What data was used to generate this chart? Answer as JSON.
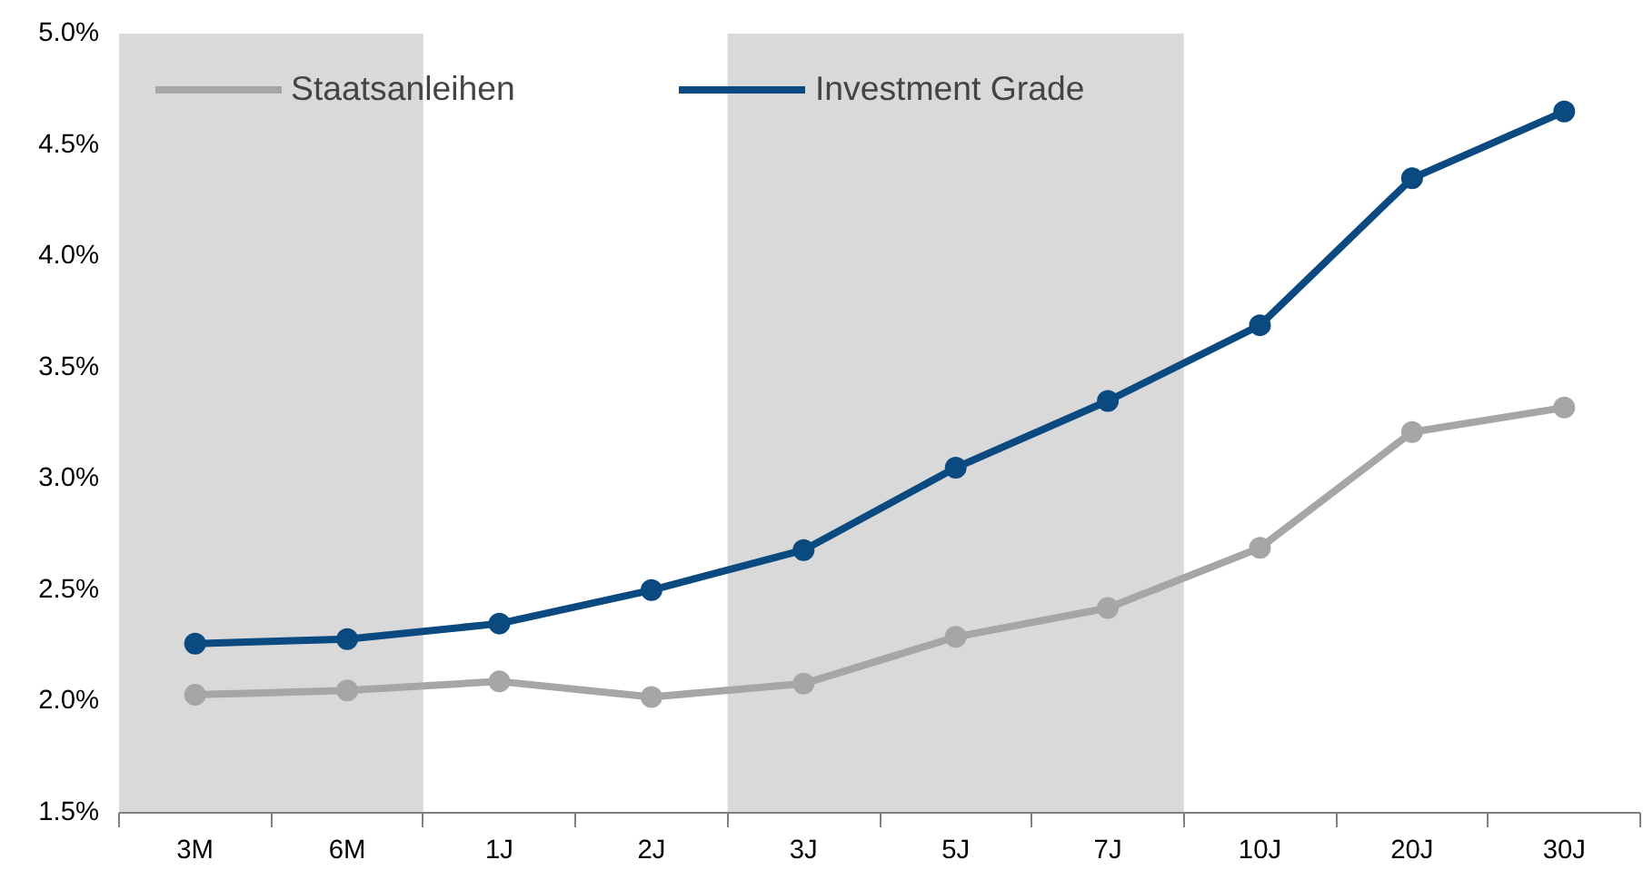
{
  "chart_data": {
    "type": "line",
    "categories": [
      "3M",
      "6M",
      "1J",
      "2J",
      "3J",
      "5J",
      "7J",
      "10J",
      "20J",
      "30J"
    ],
    "series": [
      {
        "name": "Staatsanleihen",
        "color": "#a6a6a6",
        "values": [
          2.03,
          2.05,
          2.09,
          2.02,
          2.08,
          2.29,
          2.42,
          2.69,
          3.21,
          3.32
        ]
      },
      {
        "name": "Investment Grade",
        "color": "#0b4a80",
        "values": [
          2.26,
          2.28,
          2.35,
          2.5,
          2.68,
          3.05,
          3.35,
          3.69,
          4.35,
          4.65
        ]
      }
    ],
    "ylim": [
      1.5,
      5.0
    ],
    "yticks": [
      {
        "value": 1.5,
        "label": "1.5%"
      },
      {
        "value": 2.0,
        "label": "2.0%"
      },
      {
        "value": 2.5,
        "label": "2.5%"
      },
      {
        "value": 3.0,
        "label": "3.0%"
      },
      {
        "value": 3.5,
        "label": "3.5%"
      },
      {
        "value": 4.0,
        "label": "4.0%"
      },
      {
        "value": 4.5,
        "label": "4.5%"
      },
      {
        "value": 5.0,
        "label": "5.0%"
      }
    ],
    "bands": [
      {
        "axis": "x",
        "from": "3M",
        "to": "6M",
        "color": "#d9d9d9"
      },
      {
        "axis": "x",
        "from": "3J",
        "to": "7J",
        "color": "#d9d9d9"
      }
    ],
    "marker": "circle",
    "line_style": "solid",
    "grid": false,
    "legend": "top left"
  }
}
